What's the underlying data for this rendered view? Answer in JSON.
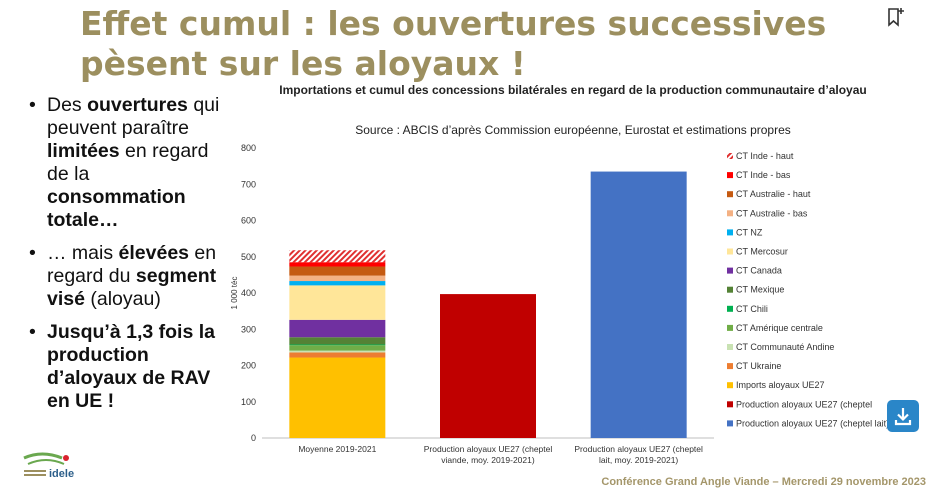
{
  "title": "Effet cumul : les ouvertures successives pèsent sur les aloyaux !",
  "bullets": [
    [
      {
        "t": "Des ",
        "b": false
      },
      {
        "t": "ouvertures",
        "b": true
      },
      {
        "t": " qui peuvent paraître ",
        "b": false
      },
      {
        "t": "limitées",
        "b": true
      },
      {
        "t": " en regard de la ",
        "b": false
      },
      {
        "t": "consommation totale…",
        "b": true
      }
    ],
    [
      {
        "t": "… mais ",
        "b": false
      },
      {
        "t": "élevées",
        "b": true
      },
      {
        "t": " en regard du ",
        "b": false
      },
      {
        "t": "segment visé",
        "b": true
      },
      {
        "t": " (aloyau)",
        "b": false
      }
    ],
    [
      {
        "t": "Jusqu’à 1,3 fois la production d’aloyaux de RAV en UE !",
        "b": true
      }
    ]
  ],
  "footer": "Conférence Grand Angle Viande – Mercredi 29 novembre 2023",
  "logo_text": "idele",
  "icons": {
    "bookmark": "bookmark-icon",
    "download": "download-icon"
  },
  "chart_data": {
    "type": "bar",
    "stacked": true,
    "title": "Importations et cumul des concessions bilatérales en regard de la production communautaire d’aloyau",
    "subtitle": "Source : ABCIS d’après Commission européenne, Eurostat et estimations propres",
    "ylabel": "1 000 téc",
    "xlabel": "",
    "ylim": [
      0,
      800
    ],
    "yticks": [
      0,
      100,
      200,
      300,
      400,
      500,
      600,
      700,
      800
    ],
    "grid": false,
    "legend_position": "right",
    "categories": [
      "Moyenne 2019-2021",
      "Production aloyaux UE27 (cheptel viande, moy. 2019-2021)",
      "Production aloyaux UE27 (cheptel lait, moy. 2019-2021)"
    ],
    "series": [
      {
        "name": "Production aloyaux UE27 (cheptel lait)",
        "color": "#4472c4",
        "values": [
          0,
          0,
          735
        ]
      },
      {
        "name": "Production aloyaux UE27 (cheptel viande)",
        "color": "#c00000",
        "values": [
          0,
          397,
          0
        ]
      },
      {
        "name": "Imports aloyaux UE27",
        "color": "#ffc000",
        "values": [
          222,
          0,
          0
        ]
      },
      {
        "name": "CT Ukraine",
        "color": "#ed7d31",
        "values": [
          14,
          0,
          0
        ]
      },
      {
        "name": "CT Communauté Andine",
        "color": "#c9e2b3",
        "values": [
          5,
          0,
          0
        ]
      },
      {
        "name": "CT Amérique centrale",
        "color": "#70ad47",
        "values": [
          15,
          0,
          0
        ]
      },
      {
        "name": "CT Chili",
        "color": "#00b050",
        "values": [
          2,
          0,
          0
        ]
      },
      {
        "name": "CT Mexique",
        "color": "#548235",
        "values": [
          20,
          0,
          0
        ]
      },
      {
        "name": "CT Canada",
        "color": "#7030a0",
        "values": [
          48,
          0,
          0
        ]
      },
      {
        "name": "CT Mercosur",
        "color": "#ffe699",
        "values": [
          95,
          0,
          0
        ]
      },
      {
        "name": "CT NZ",
        "color": "#00b0f0",
        "values": [
          12,
          0,
          0
        ]
      },
      {
        "name": "CT Australie - bas",
        "color": "#f4b183",
        "values": [
          15,
          0,
          0
        ]
      },
      {
        "name": "CT Australie - haut",
        "color": "#c55a11",
        "values": [
          25,
          0,
          0
        ]
      },
      {
        "name": "CT Inde - bas",
        "color": "#ff0000",
        "values": [
          12,
          0,
          0
        ]
      },
      {
        "name": "CT Inde - haut",
        "color": "#ff6f6f",
        "pattern": "hatch",
        "values": [
          33,
          0,
          0
        ]
      }
    ],
    "legend_order": [
      "CT Inde - haut",
      "CT Inde - bas",
      "CT Australie - haut",
      "CT Australie - bas",
      "CT NZ",
      "CT Mercosur",
      "CT Canada",
      "CT Mexique",
      "CT Chili",
      "CT Amérique centrale",
      "CT Communauté Andine",
      "CT Ukraine",
      "Imports aloyaux UE27",
      "Production aloyaux UE27 (cheptel viande)",
      "Production aloyaux UE27 (cheptel lait)"
    ],
    "x_tick_lines": [
      [
        "Moyenne 2019-2021"
      ],
      [
        "Production aloyaux UE27 (cheptel",
        "viande, moy. 2019-2021)"
      ],
      [
        "Production aloyaux UE27 (cheptel",
        "lait, moy. 2019-2021)"
      ]
    ],
    "legend_display": [
      "CT Inde - haut",
      "CT Inde - bas",
      "CT Australie - haut",
      "CT Australie - bas",
      "CT NZ",
      "CT Mercosur",
      "CT Canada",
      "CT Mexique",
      "CT Chili",
      "CT Amérique centrale",
      "CT Communauté Andine",
      "CT Ukraine",
      "Imports aloyaux UE27",
      "Production aloyaux UE27 (cheptel",
      "Production aloyaux UE27 (cheptel lait)"
    ]
  }
}
